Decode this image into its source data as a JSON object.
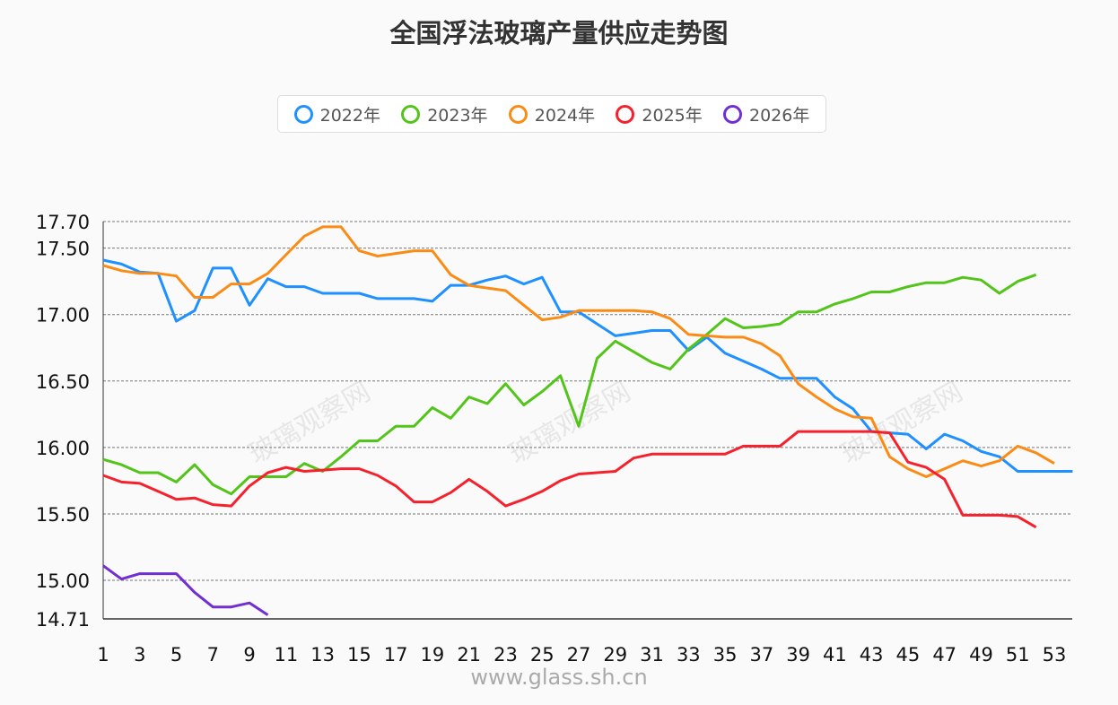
{
  "chart_data": {
    "type": "line",
    "title": "全国浮法玻璃产量供应走势图",
    "xlabel": "",
    "ylabel": "",
    "xlim": [
      1,
      54
    ],
    "ylim": [
      14.71,
      17.7
    ],
    "x_tick_labels": [
      "1",
      "3",
      "5",
      "7",
      "9",
      "11",
      "13",
      "15",
      "17",
      "19",
      "21",
      "23",
      "25",
      "27",
      "29",
      "31",
      "33",
      "35",
      "37",
      "39",
      "41",
      "43",
      "45",
      "47",
      "49",
      "51",
      "53"
    ],
    "y_tick_labels": [
      "17.70",
      "17.50",
      "17.00",
      "16.50",
      "16.00",
      "15.50",
      "15.00",
      "14.71"
    ],
    "grid": "horizontal dashed",
    "legend_position": "top-center",
    "watermark": "玻璃观察网",
    "footer": "www.glass.sh.cn",
    "series": [
      {
        "name": "2022年",
        "color": "#1e90ff",
        "values": [
          17.41,
          17.38,
          17.32,
          17.31,
          16.95,
          17.03,
          17.35,
          17.35,
          17.07,
          17.27,
          17.21,
          17.21,
          17.16,
          17.16,
          17.16,
          17.12,
          17.12,
          17.12,
          17.1,
          17.22,
          17.22,
          17.26,
          17.29,
          17.23,
          17.28,
          17.02,
          17.02,
          16.93,
          16.84,
          16.86,
          16.88,
          16.88,
          16.73,
          16.83,
          16.71,
          16.65,
          16.59,
          16.52,
          16.52,
          16.52,
          16.38,
          16.29,
          16.12,
          16.11,
          16.1,
          15.99,
          16.1,
          16.05,
          15.97,
          15.93,
          15.82,
          15.82,
          15.82,
          15.82
        ]
      },
      {
        "name": "2023年",
        "color": "#52c41a",
        "values": [
          15.91,
          15.87,
          15.81,
          15.81,
          15.74,
          15.87,
          15.72,
          15.65,
          15.78,
          15.78,
          15.78,
          15.88,
          15.82,
          15.93,
          16.05,
          16.05,
          16.16,
          16.16,
          16.3,
          16.22,
          16.38,
          16.33,
          16.48,
          16.32,
          16.42,
          16.54,
          16.16,
          16.67,
          16.8,
          16.72,
          16.64,
          16.59,
          16.74,
          16.85,
          16.97,
          16.9,
          16.91,
          16.93,
          17.02,
          17.02,
          17.08,
          17.12,
          17.17,
          17.17,
          17.21,
          17.24,
          17.24,
          17.28,
          17.26,
          17.16,
          17.25,
          17.3
        ]
      },
      {
        "name": "2024年",
        "color": "#fa8c16",
        "values": [
          17.37,
          17.33,
          17.31,
          17.31,
          17.29,
          17.13,
          17.13,
          17.23,
          17.23,
          17.31,
          17.45,
          17.59,
          17.66,
          17.66,
          17.48,
          17.44,
          17.46,
          17.48,
          17.48,
          17.3,
          17.22,
          17.2,
          17.18,
          17.07,
          16.96,
          16.98,
          17.03,
          17.03,
          17.03,
          17.03,
          17.02,
          16.97,
          16.85,
          16.84,
          16.83,
          16.83,
          16.78,
          16.69,
          16.48,
          16.38,
          16.29,
          16.23,
          16.22,
          15.93,
          15.84,
          15.78,
          15.84,
          15.9,
          15.86,
          15.9,
          16.01,
          15.96,
          15.88
        ]
      },
      {
        "name": "2025年",
        "color": "#f5222d",
        "values": [
          15.79,
          15.74,
          15.73,
          15.67,
          15.61,
          15.62,
          15.57,
          15.56,
          15.71,
          15.81,
          15.85,
          15.82,
          15.83,
          15.84,
          15.84,
          15.79,
          15.71,
          15.59,
          15.59,
          15.66,
          15.76,
          15.67,
          15.56,
          15.61,
          15.67,
          15.75,
          15.8,
          15.81,
          15.82,
          15.92,
          15.95,
          15.95,
          15.95,
          15.95,
          15.95,
          16.01,
          16.01,
          16.01,
          16.12,
          16.12,
          16.12,
          16.12,
          16.12,
          16.11,
          15.89,
          15.85,
          15.76,
          15.49,
          15.49,
          15.49,
          15.48,
          15.4
        ]
      },
      {
        "name": "2026年",
        "color": "#722ed1",
        "values": [
          15.11,
          15.01,
          15.05,
          15.05,
          15.05,
          14.91,
          14.8,
          14.8,
          14.83,
          14.74
        ]
      }
    ]
  }
}
